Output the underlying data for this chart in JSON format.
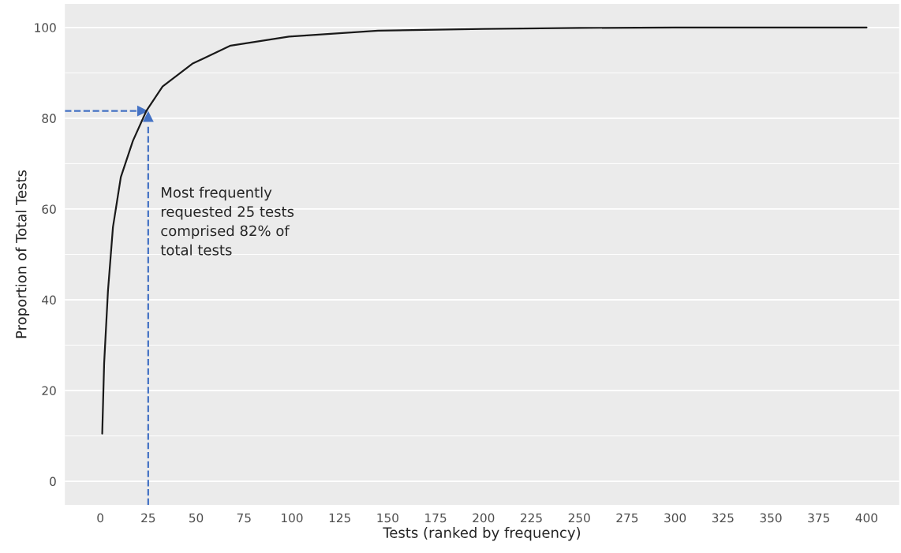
{
  "chart_data": {
    "type": "line",
    "xlabel": "Tests (ranked by frequency)",
    "ylabel": "Proportion of Total Tests",
    "x": [
      1,
      2,
      4,
      6.6,
      10.7,
      17,
      24,
      32.5,
      48,
      68,
      98.5,
      145,
      200,
      250,
      300,
      400
    ],
    "series": [
      {
        "color": "#1a1a1a",
        "values": [
          10.5,
          26,
          42,
          56,
          67,
          75,
          81.6,
          87,
          92,
          96,
          98,
          99.3,
          99.7,
          99.9,
          100,
          100
        ]
      }
    ],
    "xlim": [
      -18.5,
      417
    ],
    "ylim": [
      -5.2,
      105.2
    ],
    "xticks": [
      0,
      25,
      50,
      75,
      100,
      125,
      150,
      175,
      200,
      225,
      250,
      275,
      300,
      325,
      350,
      375,
      400
    ],
    "yticks": [
      0,
      20,
      40,
      60,
      80,
      100
    ],
    "grid": "y",
    "legend": false,
    "marker": "none",
    "line_style": "solid",
    "ref_lines": [
      {
        "axis": "x",
        "value": 25,
        "color": "#4472c4",
        "line_style": "dashed"
      },
      {
        "axis": "y",
        "value": 81.6,
        "color": "#4472c4",
        "line_style": "dashed"
      }
    ],
    "annotations": [
      "Most frequently\nrequested 25 tests\ncomprised 82% of\ntotal tests"
    ]
  }
}
